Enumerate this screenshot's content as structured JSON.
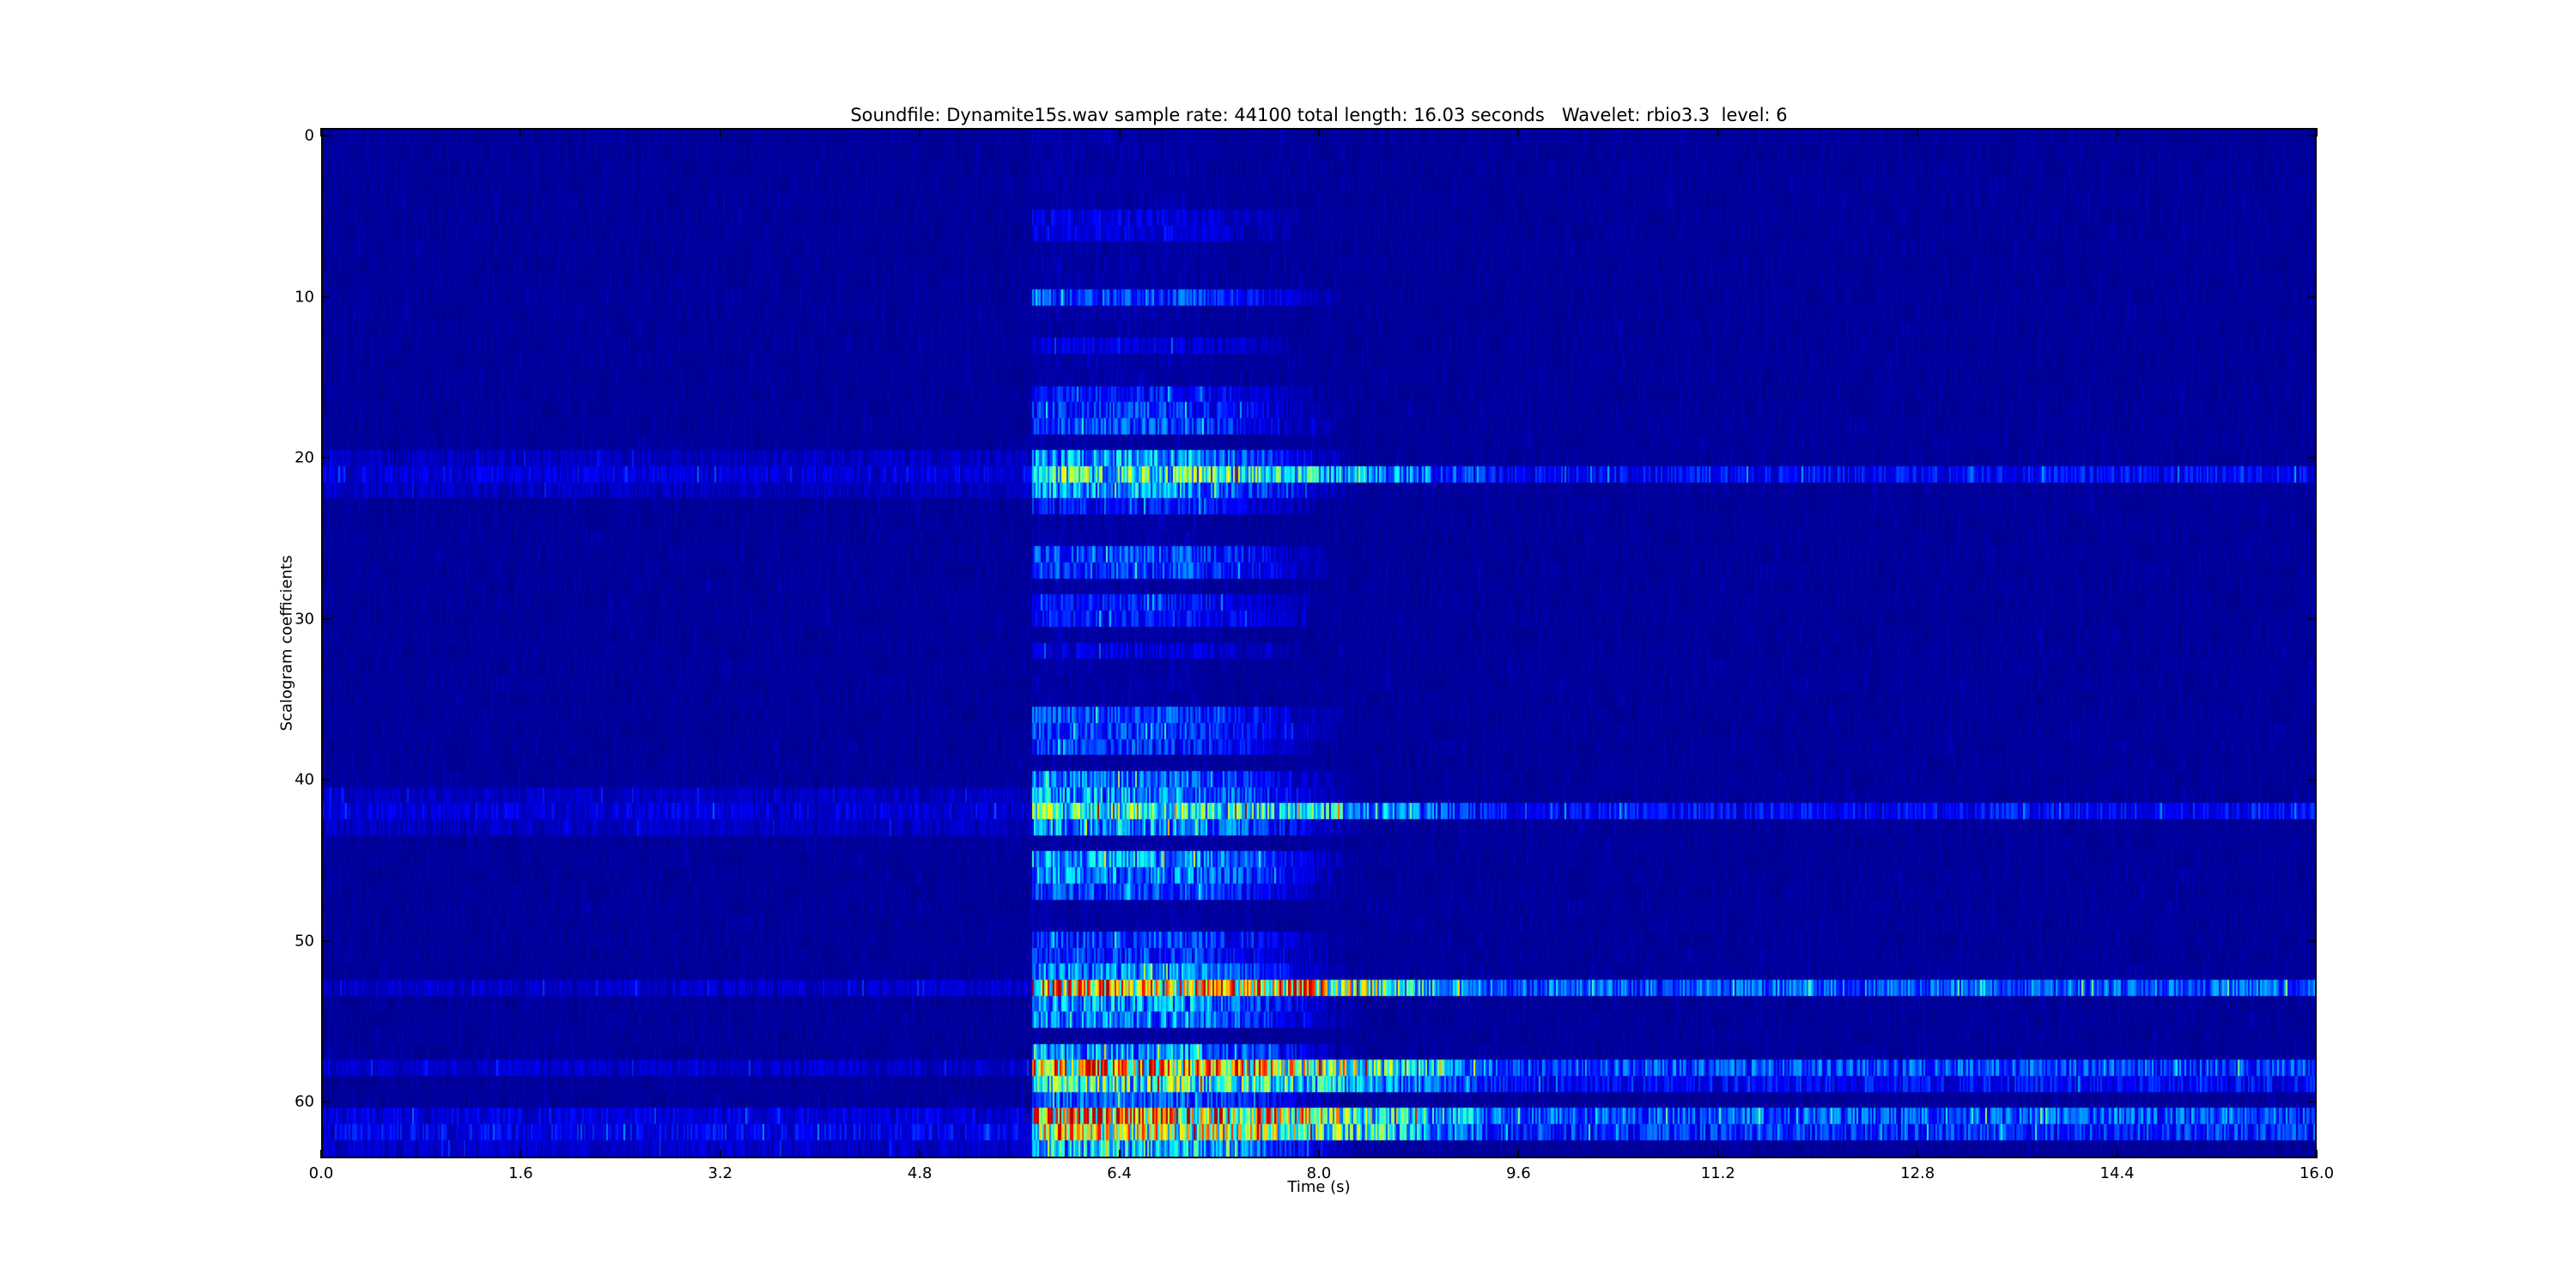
{
  "chart_data": {
    "type": "heatmap",
    "title": "Soundfile: Dynamite15s.wav sample rate: 44100 total length: 16.03 seconds   Wavelet: rbio3.3  level: 6",
    "xlabel": "Time (s)",
    "ylabel": "Scalogram coefficients",
    "xlim": [
      0.0,
      16.0
    ],
    "ylim": [
      63.5,
      -0.5
    ],
    "x_ticks": [
      "0.0",
      "1.6",
      "3.2",
      "4.8",
      "6.4",
      "8.0",
      "9.6",
      "11.2",
      "12.8",
      "14.4",
      "16.0"
    ],
    "y_ticks": [
      "0",
      "10",
      "20",
      "30",
      "40",
      "50",
      "60"
    ],
    "colormap": "jet",
    "grid": false,
    "onset_time_s": 5.7,
    "rows": 64,
    "row_intensity_after_onset": {
      "5": 0.1,
      "6": 0.1,
      "10": 0.2,
      "13": 0.1,
      "16": 0.15,
      "17": 0.18,
      "18": 0.2,
      "20": 0.3,
      "21": 0.45,
      "22": 0.3,
      "23": 0.15,
      "26": 0.2,
      "27": 0.2,
      "29": 0.15,
      "30": 0.15,
      "32": 0.1,
      "36": 0.2,
      "37": 0.2,
      "38": 0.18,
      "40": 0.25,
      "41": 0.3,
      "42": 0.45,
      "43": 0.3,
      "45": 0.3,
      "46": 0.28,
      "47": 0.2,
      "50": 0.2,
      "51": 0.18,
      "52": 0.28,
      "53": 0.75,
      "54": 0.3,
      "55": 0.28,
      "57": 0.3,
      "58": 0.7,
      "59": 0.45,
      "60": 0.22,
      "61": 0.75,
      "62": 0.6,
      "63": 0.35
    },
    "row_intensity_before_onset": {
      "20": 0.07,
      "21": 0.1,
      "22": 0.07,
      "41": 0.07,
      "42": 0.1,
      "43": 0.07,
      "53": 0.08,
      "58": 0.08,
      "61": 0.1,
      "62": 0.12,
      "63": 0.08
    }
  }
}
